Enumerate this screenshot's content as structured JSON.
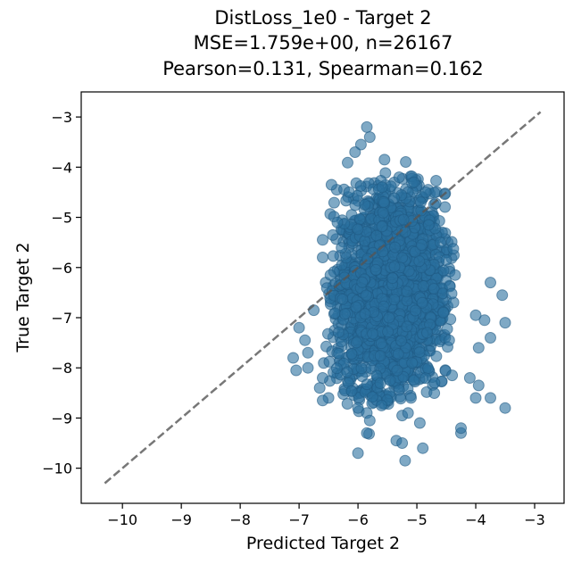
{
  "chart_data": {
    "type": "scatter",
    "title_lines": [
      "DistLoss_1e0 - Target 2",
      "MSE=1.759e+00, n=26167",
      "Pearson=0.131, Spearman=0.162"
    ],
    "xlabel": "Predicted Target 2",
    "ylabel": "True Target 2",
    "xlim": [
      -10.7,
      -2.5
    ],
    "ylim": [
      -10.7,
      -2.5
    ],
    "x_ticks": [
      -10,
      -9,
      -8,
      -7,
      -6,
      -5,
      -4,
      -3
    ],
    "y_ticks": [
      -10,
      -9,
      -8,
      -7,
      -6,
      -5,
      -4,
      -3
    ],
    "x_tick_labels": [
      "−10",
      "−9",
      "−8",
      "−7",
      "−6",
      "−5",
      "−4",
      "−3"
    ],
    "y_tick_labels": [
      "−10",
      "−9",
      "−8",
      "−7",
      "−6",
      "−5",
      "−4",
      "−3"
    ],
    "grid": false,
    "point_color": "#2a6f9e",
    "reference_line": {
      "style": "dashed",
      "color": "#555555",
      "x": [
        -10.3,
        -2.9
      ],
      "y": [
        -10.3,
        -2.9
      ]
    },
    "cluster": {
      "center_x": -5.45,
      "center_y": -6.45,
      "std_x": 0.42,
      "std_y": 0.95
    },
    "outliers": [
      [
        -5.85,
        -3.2
      ],
      [
        -5.95,
        -3.55
      ],
      [
        -5.8,
        -3.4
      ],
      [
        -6.05,
        -3.7
      ],
      [
        -5.55,
        -3.85
      ],
      [
        -6.45,
        -4.35
      ],
      [
        -6.15,
        -4.5
      ],
      [
        -4.85,
        -4.5
      ],
      [
        -6.35,
        -5.1
      ],
      [
        -6.6,
        -5.45
      ],
      [
        -4.8,
        -5.15
      ],
      [
        -6.6,
        -5.8
      ],
      [
        -4.6,
        -5.5
      ],
      [
        -4.5,
        -5.85
      ],
      [
        -4.35,
        -6.15
      ],
      [
        -3.75,
        -6.3
      ],
      [
        -3.55,
        -6.55
      ],
      [
        -6.75,
        -6.85
      ],
      [
        -7.0,
        -7.2
      ],
      [
        -4.0,
        -6.95
      ],
      [
        -3.85,
        -7.05
      ],
      [
        -3.5,
        -7.1
      ],
      [
        -3.75,
        -7.4
      ],
      [
        -3.95,
        -7.6
      ],
      [
        -6.9,
        -7.45
      ],
      [
        -6.85,
        -7.7
      ],
      [
        -7.1,
        -7.8
      ],
      [
        -6.85,
        -8.0
      ],
      [
        -7.05,
        -8.05
      ],
      [
        -4.1,
        -8.2
      ],
      [
        -3.95,
        -8.35
      ],
      [
        -4.4,
        -8.15
      ],
      [
        -6.6,
        -8.2
      ],
      [
        -6.65,
        -8.4
      ],
      [
        -6.5,
        -8.6
      ],
      [
        -4.0,
        -8.6
      ],
      [
        -3.75,
        -8.6
      ],
      [
        -3.5,
        -8.8
      ],
      [
        -6.6,
        -8.65
      ],
      [
        -6.0,
        -8.8
      ],
      [
        -5.85,
        -8.9
      ],
      [
        -5.8,
        -9.05
      ],
      [
        -5.25,
        -8.95
      ],
      [
        -5.15,
        -8.9
      ],
      [
        -4.95,
        -9.1
      ],
      [
        -5.85,
        -9.3
      ],
      [
        -6.0,
        -9.7
      ],
      [
        -5.35,
        -9.45
      ],
      [
        -5.25,
        -9.5
      ],
      [
        -5.2,
        -9.85
      ],
      [
        -4.9,
        -9.6
      ],
      [
        -4.25,
        -9.3
      ],
      [
        -4.25,
        -9.2
      ],
      [
        -5.1,
        -8.6
      ],
      [
        -5.6,
        -8.75
      ],
      [
        -4.7,
        -8.3
      ],
      [
        -5.3,
        -4.2
      ],
      [
        -5.05,
        -4.3
      ],
      [
        -4.55,
        -6.9
      ],
      [
        -4.45,
        -7.45
      ]
    ]
  }
}
